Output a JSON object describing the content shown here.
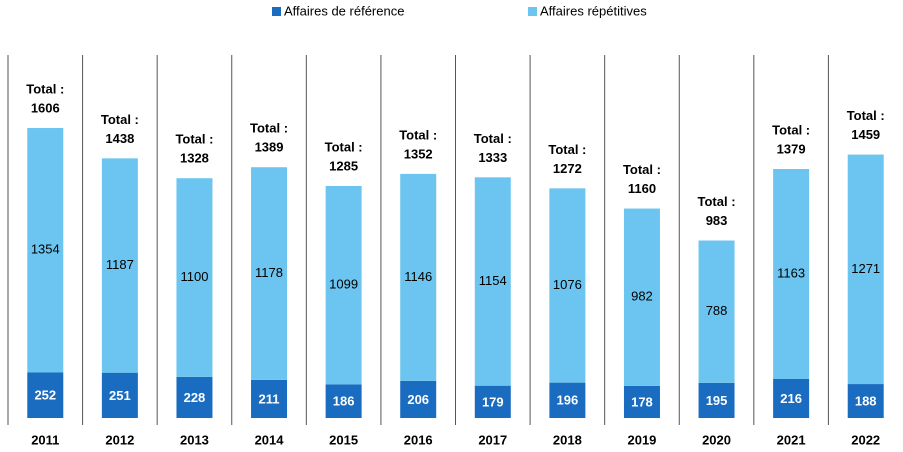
{
  "chart_data": {
    "type": "stacked_bar",
    "categories": [
      "2011",
      "2012",
      "2013",
      "2014",
      "2015",
      "2016",
      "2017",
      "2018",
      "2019",
      "2020",
      "2021",
      "2022"
    ],
    "series": [
      {
        "name": "Affaires de référence",
        "color": "#1a6cc0",
        "values": [
          252,
          251,
          228,
          211,
          186,
          206,
          179,
          196,
          178,
          195,
          216,
          188
        ]
      },
      {
        "name": "Affaires répétitives",
        "color": "#6cc5f0",
        "values": [
          1354,
          1187,
          1100,
          1178,
          1099,
          1146,
          1154,
          1076,
          982,
          788,
          1163,
          1271
        ]
      }
    ],
    "total_label": "Total :",
    "totals": [
      1606,
      1438,
      1328,
      1389,
      1285,
      1352,
      1333,
      1272,
      1160,
      983,
      1379,
      1459
    ],
    "ylim": [
      0,
      1800
    ],
    "legend": "top"
  }
}
